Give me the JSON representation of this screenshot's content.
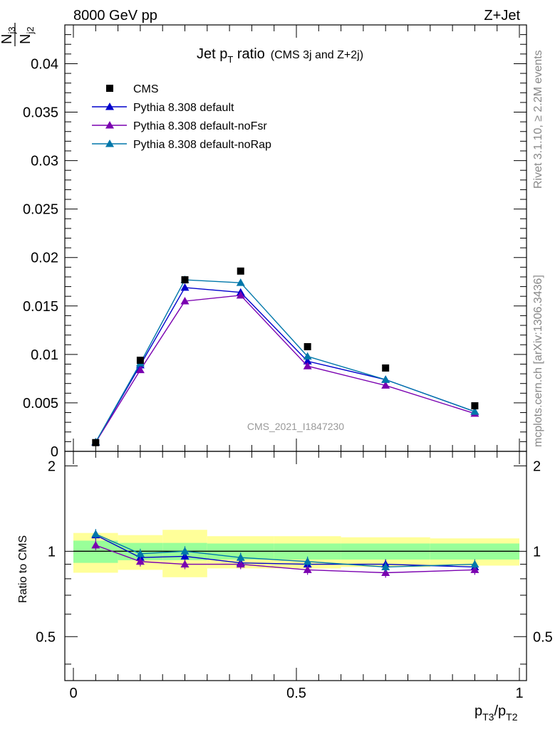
{
  "header": {
    "left": "8000 GeV pp",
    "right": "Z+Jet"
  },
  "plot_title": {
    "main": "Jet p",
    "main_sub": "T",
    "main_rest": " ratio",
    "extra": "(CMS 3j and Z+2j)"
  },
  "y_axis_label": {
    "num_main": "N",
    "num_sub": "j3",
    "den_main": "N",
    "den_sub": "j2"
  },
  "x_axis_label": {
    "p1": "p",
    "p1_sub": "T3",
    "slash": "/p",
    "p2_sub": "T2"
  },
  "ratio_ylabel": "Ratio to CMS",
  "watermark": "CMS_2021_I1847230",
  "side_labels": {
    "rivet": "Rivet 3.1.10, ≥ 2.2M events",
    "mcplots": "mcplots.cern.ch [arXiv:1306.3436]"
  },
  "colors": {
    "cms": "#000000",
    "default": "#0000cc",
    "noFsr": "#7a00b0",
    "noRap": "#0077aa",
    "band_inner": "#99ff99",
    "band_outer": "#ffff99"
  },
  "chart_data": {
    "type": "line",
    "xlim": [
      0,
      1
    ],
    "ylim": [
      0,
      0.044
    ],
    "ratio_ylim": [
      0.35,
      2.25
    ],
    "x_ticks": [
      "0",
      "0.5",
      "1"
    ],
    "y_ticks": [
      "0",
      "0.005",
      "0.01",
      "0.015",
      "0.02",
      "0.025",
      "0.03",
      "0.035",
      "0.04"
    ],
    "ratio_ticks": [
      "0.5",
      "1",
      "2"
    ],
    "bins": [
      [
        0,
        0.1
      ],
      [
        0.1,
        0.2
      ],
      [
        0.2,
        0.3
      ],
      [
        0.3,
        0.45
      ],
      [
        0.45,
        0.6
      ],
      [
        0.6,
        0.8
      ],
      [
        0.8,
        1.0
      ]
    ],
    "x": [
      0.05,
      0.15,
      0.25,
      0.375,
      0.525,
      0.7,
      0.9
    ],
    "data": {
      "name": "CMS",
      "values": [
        0.0009,
        0.0094,
        0.0177,
        0.0186,
        0.0108,
        0.0086,
        0.0047
      ],
      "band_inner": [
        0.09,
        0.07,
        0.07,
        0.065,
        0.065,
        0.065,
        0.065
      ],
      "band_outer": [
        0.16,
        0.14,
        0.19,
        0.13,
        0.13,
        0.12,
        0.11
      ]
    },
    "series": [
      {
        "name": "Pythia 8.308 default",
        "values": [
          0.00095,
          0.0089,
          0.0169,
          0.0164,
          0.0093,
          0.0074,
          0.0041
        ],
        "ratio": [
          1.14,
          0.95,
          0.96,
          0.91,
          0.9,
          0.9,
          0.88
        ]
      },
      {
        "name": "Pythia 8.308 default-noFsr",
        "values": [
          0.00093,
          0.0084,
          0.0155,
          0.0161,
          0.0088,
          0.0068,
          0.0039
        ],
        "ratio": [
          1.05,
          0.92,
          0.9,
          0.9,
          0.86,
          0.84,
          0.86
        ]
      },
      {
        "name": "Pythia 8.308 default-noRap",
        "values": [
          0.00096,
          0.0091,
          0.0177,
          0.0174,
          0.0098,
          0.0074,
          0.0041
        ],
        "ratio": [
          1.15,
          0.98,
          1.0,
          0.95,
          0.92,
          0.88,
          0.9
        ]
      }
    ]
  }
}
